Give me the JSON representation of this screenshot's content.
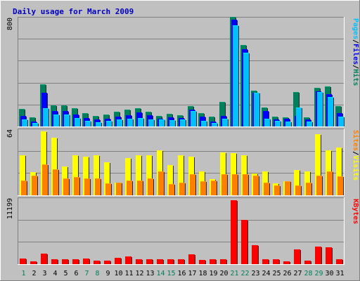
{
  "title": "Daily usage for March 2009",
  "colors": {
    "background": "#c0c0c0",
    "panel": "#c0c0c0",
    "title": "#0000c0",
    "hits": "#00805c",
    "files": "#0000ff",
    "pages": "#00c0ff",
    "visits": "#ffff00",
    "sites": "#ff8000",
    "kbytes": "#ff0000",
    "weekend_day": "#00805c",
    "weekday": "#000000"
  },
  "panels": {
    "top": {
      "scale_label": "800",
      "legend": [
        {
          "text": "Pages",
          "color_key": "pages"
        },
        {
          "text": "/",
          "color_key": "weekday"
        },
        {
          "text": "Files",
          "color_key": "files"
        },
        {
          "text": "/",
          "color_key": "weekday"
        },
        {
          "text": "Hits",
          "color_key": "hits"
        }
      ]
    },
    "middle": {
      "scale_label": "64",
      "legend": [
        {
          "text": "Sites",
          "color_key": "sites"
        },
        {
          "text": "/",
          "color_key": "weekday"
        },
        {
          "text": "Visits",
          "color_key": "visits"
        }
      ]
    },
    "bottom": {
      "scale_label": "11199",
      "legend": [
        {
          "text": "KBytes",
          "color_key": "kbytes"
        }
      ]
    }
  },
  "chart_data": {
    "type": "bar",
    "title": "Daily usage for March 2009",
    "categories": [
      "1",
      "2",
      "3",
      "4",
      "5",
      "6",
      "7",
      "8",
      "9",
      "10",
      "11",
      "12",
      "13",
      "14",
      "15",
      "16",
      "17",
      "18",
      "19",
      "20",
      "21",
      "22",
      "23",
      "24",
      "25",
      "26",
      "27",
      "28",
      "29",
      "30",
      "31"
    ],
    "weekend_days": [
      "1",
      "7",
      "8",
      "14",
      "15",
      "21",
      "22",
      "28",
      "29"
    ],
    "panels": [
      {
        "name": "top",
        "ymax": 800,
        "series": [
          {
            "name": "Hits",
            "color_key": "hits",
            "values": [
              134,
              68,
              314,
              160,
              156,
              138,
              102,
              78,
              90,
              110,
              128,
              138,
              110,
              80,
              96,
              82,
              155,
              100,
              74,
              182,
              820,
              608,
              270,
              142,
              74,
              68,
              258,
              68,
              290,
              298,
              152
            ]
          },
          {
            "name": "Files",
            "color_key": "files",
            "values": [
              80,
              38,
              250,
              116,
              116,
              90,
              62,
              50,
              56,
              76,
              86,
              104,
              84,
              58,
              68,
              64,
              124,
              76,
              38,
              78,
              798,
              580,
              254,
              118,
              54,
              56,
              80,
              52,
              264,
              242,
              100
            ]
          },
          {
            "name": "Pages",
            "color_key": "pages",
            "values": [
              52,
              26,
              138,
              90,
              90,
              64,
              40,
              34,
              40,
              52,
              56,
              64,
              52,
              50,
              46,
              54,
              114,
              44,
              26,
              56,
              756,
              550,
              252,
              60,
              44,
              38,
              140,
              36,
              256,
              220,
              76
            ]
          }
        ]
      },
      {
        "name": "middle",
        "ymax": 64,
        "series": [
          {
            "name": "Visits",
            "color_key": "visits",
            "values": [
              40,
              23,
              64,
              58,
              29,
              40,
              39,
              40,
              33,
              13,
              37,
              40,
              40,
              45,
              30,
              40,
              39,
              24,
              16,
              43,
              42,
              40,
              22,
              24,
              12,
              14,
              25,
              24,
              61,
              45,
              48
            ]
          },
          {
            "name": "Sites",
            "color_key": "sites",
            "values": [
              15,
              20,
              31,
              26,
              17,
              18,
              17,
              17,
              12,
              13,
              15,
              15,
              17,
              24,
              11,
              13,
              21,
              14,
              15,
              21,
              21,
              21,
              20,
              13,
              10,
              14,
              10,
              13,
              20,
              24,
              19
            ]
          }
        ]
      },
      {
        "name": "bottom",
        "ymax": 11199,
        "series": [
          {
            "name": "KBytes",
            "color_key": "kbytes",
            "values": [
              1000,
              500,
              1850,
              900,
              850,
              850,
              1000,
              650,
              650,
              1050,
              1400,
              900,
              850,
              850,
              850,
              850,
              1700,
              700,
              800,
              850,
              11199,
              7800,
              3300,
              900,
              800,
              500,
              2600,
              650,
              3050,
              2900,
              800
            ]
          }
        ]
      }
    ]
  }
}
